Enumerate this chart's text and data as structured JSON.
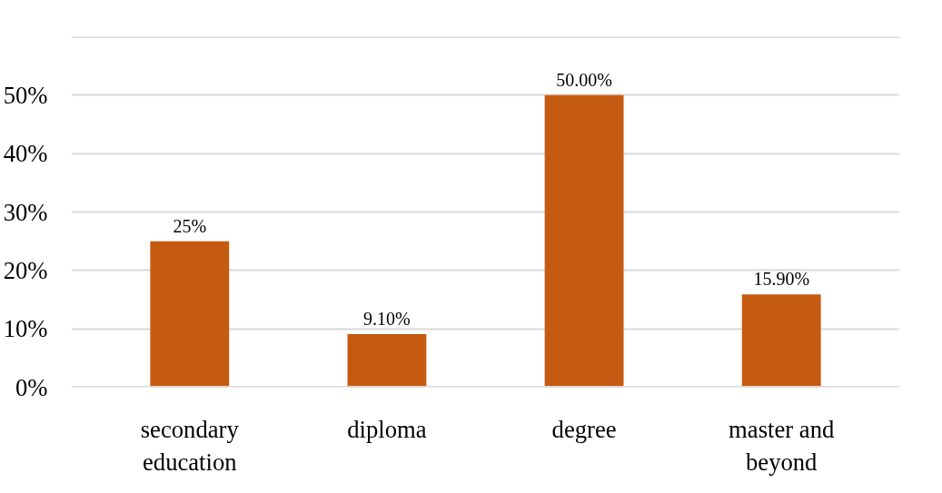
{
  "chart_data": {
    "type": "bar",
    "categories": [
      "secondary education",
      "diploma",
      "degree",
      "master and beyond"
    ],
    "values": [
      25,
      9.1,
      50,
      15.9
    ],
    "value_labels": [
      "25%",
      "9.10%",
      "50.00%",
      "15.90%"
    ],
    "color": "#c55a11",
    "ylim": [
      0,
      60
    ],
    "yticks": [
      {
        "value": 0,
        "label": "0%"
      },
      {
        "value": 10,
        "label": "10%"
      },
      {
        "value": 20,
        "label": "20%"
      },
      {
        "value": 30,
        "label": "30%"
      },
      {
        "value": 40,
        "label": "40%"
      },
      {
        "value": 50,
        "label": "50%"
      },
      {
        "value": 60,
        "label": null
      }
    ],
    "grid": "y"
  }
}
